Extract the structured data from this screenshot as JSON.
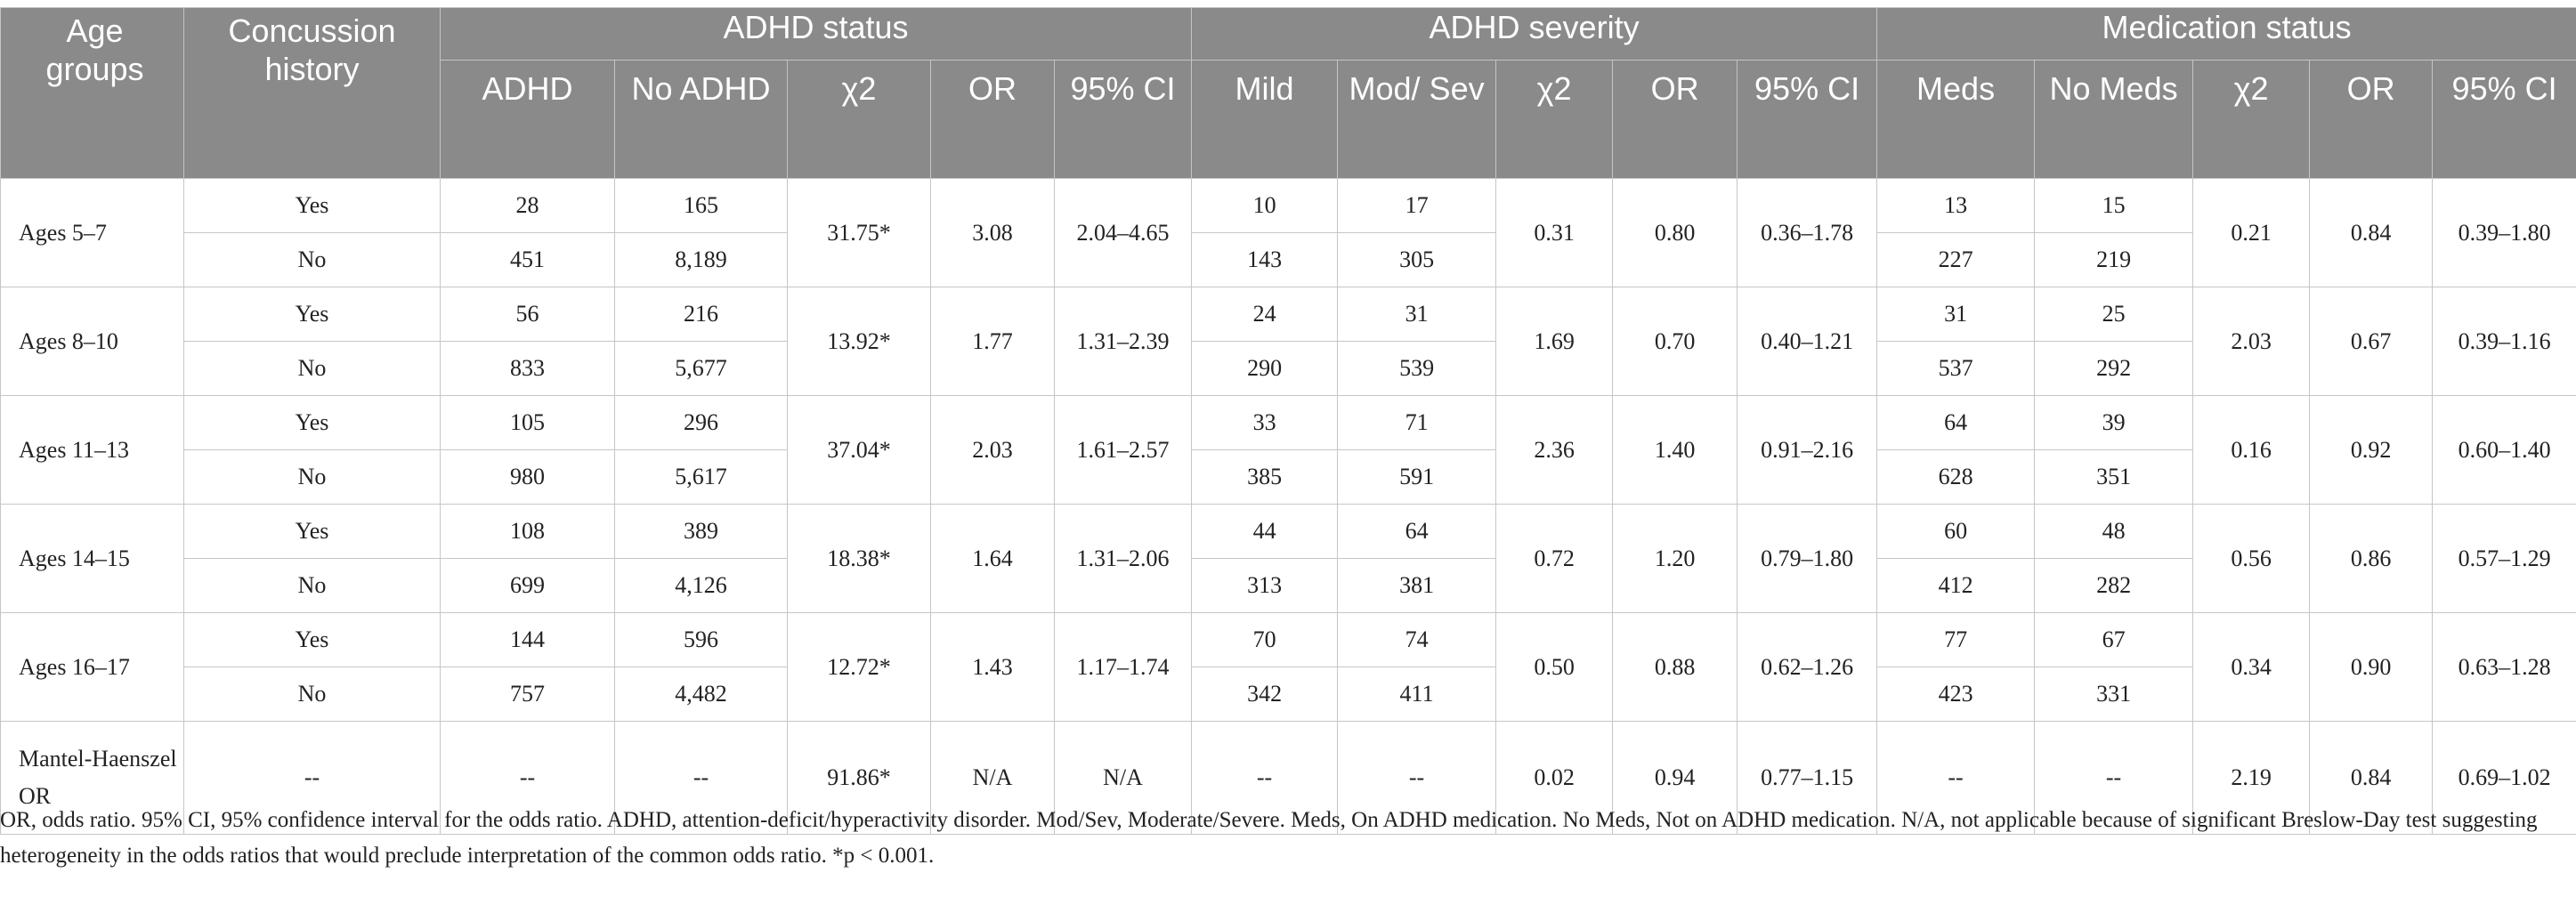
{
  "header": {
    "age_groups": "Age groups",
    "concussion_history": "Concussion history",
    "groups": [
      "ADHD status",
      "ADHD severity",
      "Medication status"
    ],
    "sub": {
      "adhd_status": [
        "ADHD",
        "No ADHD",
        "χ2",
        "OR",
        "95% CI"
      ],
      "adhd_severity": [
        "Mild",
        "Mod/ Sev",
        "χ2",
        "OR",
        "95% CI"
      ],
      "medication_status": [
        "Meds",
        "No Meds",
        "χ2",
        "OR",
        "95% CI"
      ]
    }
  },
  "rows": [
    {
      "age": "Ages 5–7",
      "status": {
        "chi2": "31.75*",
        "or": "3.08",
        "ci": "2.04–4.65"
      },
      "severity": {
        "chi2": "0.31",
        "or": "0.80",
        "ci": "0.36–1.78"
      },
      "meds": {
        "chi2": "0.21",
        "or": "0.84",
        "ci": "0.39–1.80"
      },
      "yes": {
        "label": "Yes",
        "adhd": "28",
        "noadhd": "165",
        "mild": "10",
        "modsev": "17",
        "meds": "13",
        "nomeds": "15"
      },
      "no": {
        "label": "No",
        "adhd": "451",
        "noadhd": "8,189",
        "mild": "143",
        "modsev": "305",
        "meds": "227",
        "nomeds": "219"
      }
    },
    {
      "age": "Ages 8–10",
      "status": {
        "chi2": "13.92*",
        "or": "1.77",
        "ci": "1.31–2.39"
      },
      "severity": {
        "chi2": "1.69",
        "or": "0.70",
        "ci": "0.40–1.21"
      },
      "meds": {
        "chi2": "2.03",
        "or": "0.67",
        "ci": "0.39–1.16"
      },
      "yes": {
        "label": "Yes",
        "adhd": "56",
        "noadhd": "216",
        "mild": "24",
        "modsev": "31",
        "meds": "31",
        "nomeds": "25"
      },
      "no": {
        "label": "No",
        "adhd": "833",
        "noadhd": "5,677",
        "mild": "290",
        "modsev": "539",
        "meds": "537",
        "nomeds": "292"
      }
    },
    {
      "age": "Ages 11–13",
      "status": {
        "chi2": "37.04*",
        "or": "2.03",
        "ci": "1.61–2.57"
      },
      "severity": {
        "chi2": "2.36",
        "or": "1.40",
        "ci": "0.91–2.16"
      },
      "meds": {
        "chi2": "0.16",
        "or": "0.92",
        "ci": "0.60–1.40"
      },
      "yes": {
        "label": "Yes",
        "adhd": "105",
        "noadhd": "296",
        "mild": "33",
        "modsev": "71",
        "meds": "64",
        "nomeds": "39"
      },
      "no": {
        "label": "No",
        "adhd": "980",
        "noadhd": "5,617",
        "mild": "385",
        "modsev": "591",
        "meds": "628",
        "nomeds": "351"
      }
    },
    {
      "age": "Ages 14–15",
      "status": {
        "chi2": "18.38*",
        "or": "1.64",
        "ci": "1.31–2.06"
      },
      "severity": {
        "chi2": "0.72",
        "or": "1.20",
        "ci": "0.79–1.80"
      },
      "meds": {
        "chi2": "0.56",
        "or": "0.86",
        "ci": "0.57–1.29"
      },
      "yes": {
        "label": "Yes",
        "adhd": "108",
        "noadhd": "389",
        "mild": "44",
        "modsev": "64",
        "meds": "60",
        "nomeds": "48"
      },
      "no": {
        "label": "No",
        "adhd": "699",
        "noadhd": "4,126",
        "mild": "313",
        "modsev": "381",
        "meds": "412",
        "nomeds": "282"
      }
    },
    {
      "age": "Ages 16–17",
      "status": {
        "chi2": "12.72*",
        "or": "1.43",
        "ci": "1.17–1.74"
      },
      "severity": {
        "chi2": "0.50",
        "or": "0.88",
        "ci": "0.62–1.26"
      },
      "meds": {
        "chi2": "0.34",
        "or": "0.90",
        "ci": "0.63–1.28"
      },
      "yes": {
        "label": "Yes",
        "adhd": "144",
        "noadhd": "596",
        "mild": "70",
        "modsev": "74",
        "meds": "77",
        "nomeds": "67"
      },
      "no": {
        "label": "No",
        "adhd": "757",
        "noadhd": "4,482",
        "mild": "342",
        "modsev": "411",
        "meds": "423",
        "nomeds": "331"
      }
    }
  ],
  "mantel_haenszel": {
    "label": "Mantel-Haenszel OR",
    "concussion": "--",
    "adhd": "--",
    "noadhd": "--",
    "status_chi2": "91.86*",
    "status_or": "N/A",
    "status_ci": "N/A",
    "mild": "--",
    "modsev": "--",
    "severity_chi2": "0.02",
    "severity_or": "0.94",
    "severity_ci": "0.77–1.15",
    "meds": "--",
    "nomeds": "--",
    "meds_chi2": "2.19",
    "meds_or": "0.84",
    "meds_ci": "0.69–1.02"
  },
  "footnote": "OR, odds ratio. 95% CI, 95% confidence interval for the odds ratio. ADHD, attention-deficit/hyperactivity disorder. Mod/Sev, Moderate/Severe. Meds, On ADHD medication. No Meds, Not on ADHD medication. N/A, not applicable because of significant Breslow-Day test suggesting heterogeneity in the odds ratios that would preclude interpretation of the common odds ratio. *p < 0.001."
}
